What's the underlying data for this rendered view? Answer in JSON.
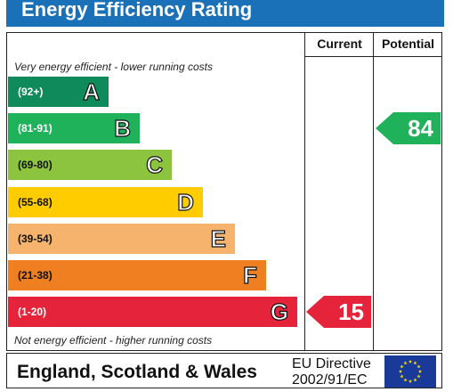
{
  "header": {
    "title": "Energy Efficiency Rating"
  },
  "columns": {
    "current": "Current",
    "potential": "Potential"
  },
  "notes": {
    "top": "Very energy efficient - lower running costs",
    "bottom": "Not energy efficient - higher running costs"
  },
  "footer": {
    "region": "England, Scotland & Wales",
    "directive_line1": "EU Directive",
    "directive_line2": "2002/91/EC"
  },
  "chart_data": {
    "type": "bar",
    "title": "Energy Efficiency Rating",
    "bands": [
      {
        "letter": "A",
        "range": "(92+)",
        "color": "#0f8a5a"
      },
      {
        "letter": "B",
        "range": "(81-91)",
        "color": "#1fb25a"
      },
      {
        "letter": "C",
        "range": "(69-80)",
        "color": "#8cc43f"
      },
      {
        "letter": "D",
        "range": "(55-68)",
        "color": "#ffcc00"
      },
      {
        "letter": "E",
        "range": "(39-54)",
        "color": "#f5b36e"
      },
      {
        "letter": "F",
        "range": "(21-38)",
        "color": "#f07f22"
      },
      {
        "letter": "G",
        "range": "(1-20)",
        "color": "#e5233b"
      }
    ],
    "current": {
      "value": "15",
      "band": "G",
      "color": "#e5233b"
    },
    "potential": {
      "value": "84",
      "band": "B",
      "color": "#1fb25a"
    }
  },
  "colors": {
    "title_bar": "#1b71b7",
    "flag": "#1a3a9a",
    "flag_stars": "#ffdd00"
  }
}
